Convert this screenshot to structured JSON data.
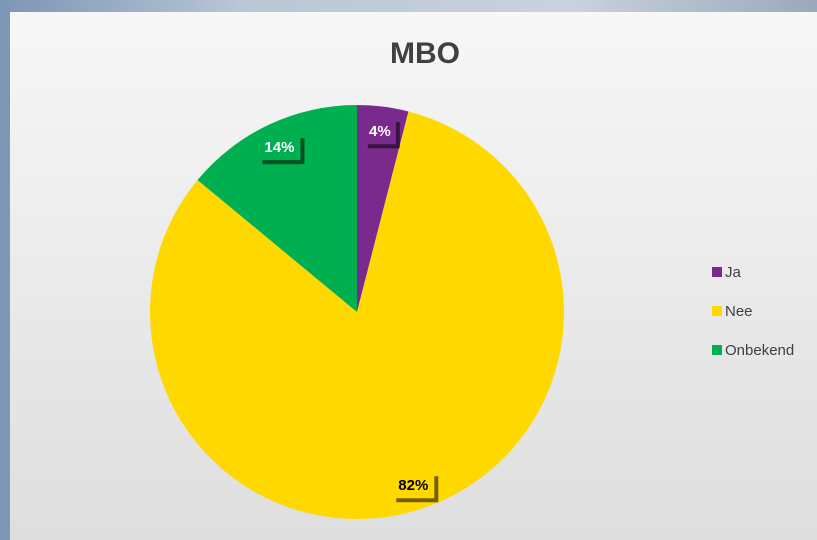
{
  "chart_data": {
    "type": "pie",
    "title": "MBO",
    "categories": [
      "Ja",
      "Nee",
      "Onbekend"
    ],
    "values": [
      4,
      82,
      14
    ],
    "value_labels": [
      "4%",
      "82%",
      "14%"
    ],
    "colors": [
      "#7a2a8c",
      "#ffd800",
      "#00b050"
    ],
    "legend": "right"
  }
}
